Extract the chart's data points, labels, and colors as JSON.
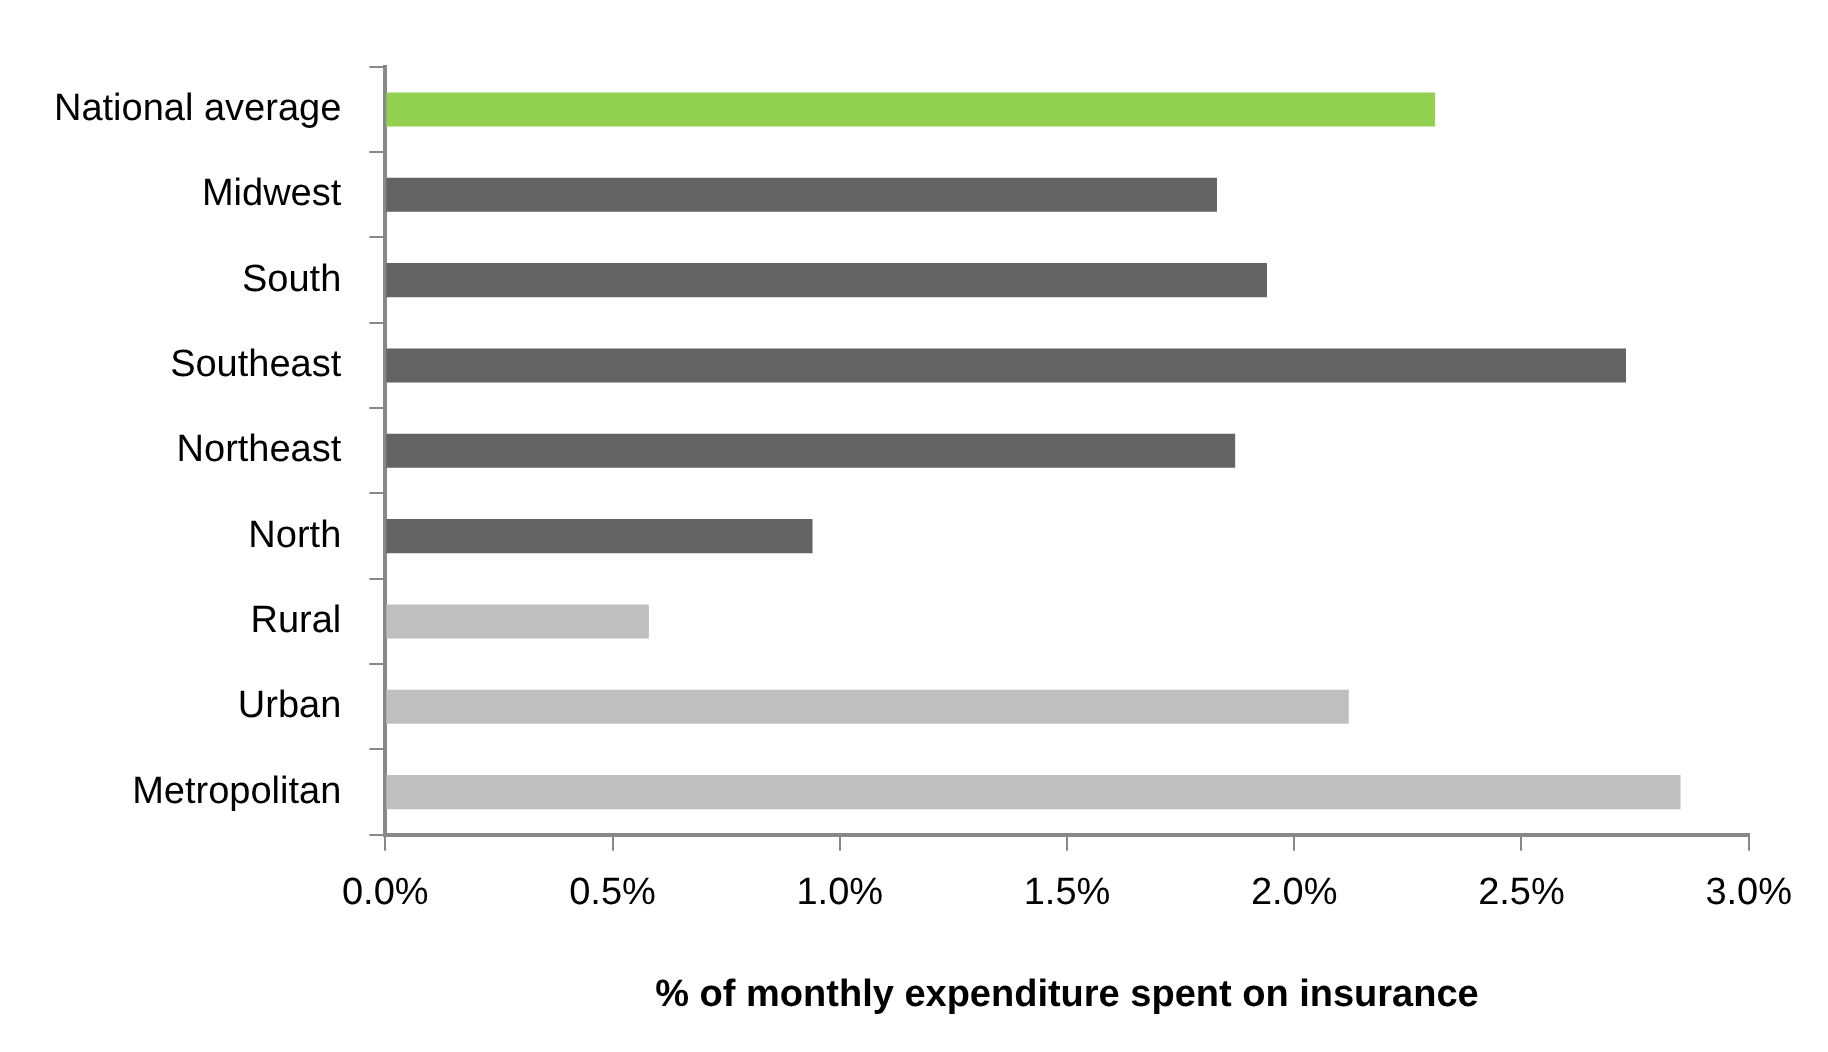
{
  "chart_data": {
    "type": "bar",
    "orientation": "horizontal",
    "xlabel": "% of monthly expenditure spent on insurance",
    "categories": [
      "National average",
      "Midwest",
      "South",
      "Southeast",
      "Northeast",
      "North",
      "Rural",
      "Urban",
      "Metropolitan"
    ],
    "values": [
      2.31,
      1.83,
      1.94,
      2.73,
      1.87,
      0.94,
      0.58,
      2.12,
      2.85
    ],
    "colors": [
      "#92d050",
      "#636363",
      "#636363",
      "#636363",
      "#636363",
      "#636363",
      "#bfbfbf",
      "#bfbfbf",
      "#bfbfbf"
    ],
    "xlim": [
      0,
      3
    ],
    "xticks": [
      {
        "value": 0,
        "label": "0.0%"
      },
      {
        "value": 0.5,
        "label": "0.5%"
      },
      {
        "value": 1,
        "label": "1.0%"
      },
      {
        "value": 1.5,
        "label": "1.5%"
      },
      {
        "value": 2,
        "label": "2.0%"
      },
      {
        "value": 2.5,
        "label": "2.5%"
      },
      {
        "value": 3,
        "label": "3.0%"
      }
    ],
    "grid": false,
    "legend": false
  }
}
